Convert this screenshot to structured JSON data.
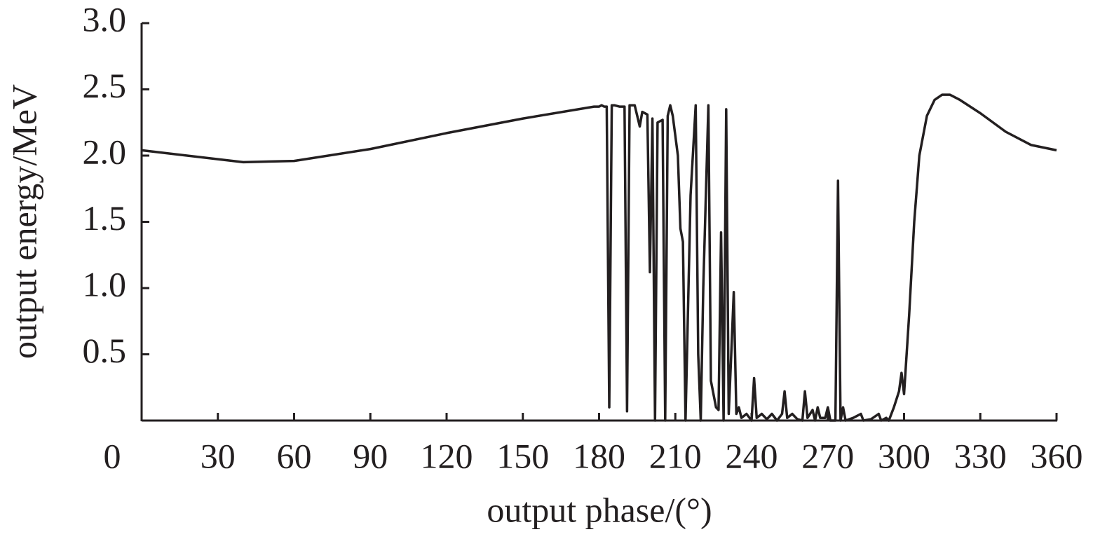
{
  "chart_data": {
    "type": "line",
    "xlabel": "output phase/(°)",
    "ylabel": "output energy/MeV",
    "xlim": [
      0,
      360
    ],
    "ylim": [
      0,
      3
    ],
    "xticks": [
      0,
      30,
      60,
      90,
      120,
      150,
      180,
      210,
      240,
      270,
      300,
      330,
      360
    ],
    "yticks": [
      0.5,
      {
        "value": 1,
        "label": "1.0"
      },
      1.5,
      {
        "value": 2,
        "label": "2.0"
      },
      2.5,
      {
        "value": 3,
        "label": "3.0"
      }
    ],
    "series": [
      {
        "color": "#231f20",
        "x": [
          0,
          40,
          60,
          90,
          120,
          150,
          178,
          180,
          181,
          182,
          183,
          184,
          185,
          186,
          188,
          190,
          191,
          192,
          194,
          196,
          197,
          199,
          200,
          201,
          202,
          203,
          205,
          206,
          207,
          208,
          209,
          211,
          212,
          213,
          214,
          216,
          218,
          219,
          220,
          221,
          223,
          224,
          226,
          227,
          228,
          229,
          230,
          231,
          232,
          233,
          234,
          235,
          236,
          238,
          240,
          241,
          242,
          244,
          246,
          248,
          250,
          252,
          253,
          254,
          256,
          258,
          260,
          261,
          262,
          264,
          265,
          266,
          267,
          269,
          270,
          271,
          273,
          274,
          275,
          276,
          277,
          280,
          283,
          284,
          287,
          290,
          291,
          293,
          294,
          296,
          298,
          299,
          300,
          302,
          304,
          306,
          309,
          312,
          315,
          318,
          322,
          330,
          340,
          350,
          360
        ],
        "values": [
          2.04,
          1.95,
          1.96,
          2.05,
          2.17,
          2.28,
          2.37,
          2.37,
          2.38,
          2.37,
          2.37,
          0.1,
          2.38,
          2.38,
          2.37,
          2.37,
          0.07,
          2.38,
          2.38,
          2.22,
          2.33,
          2.31,
          1.12,
          2.28,
          0.0,
          2.25,
          2.27,
          0.0,
          2.3,
          2.38,
          2.3,
          2.0,
          1.45,
          1.35,
          0.0,
          1.7,
          2.38,
          0.5,
          0.0,
          1.0,
          2.38,
          0.3,
          0.1,
          0.08,
          1.42,
          0.0,
          2.35,
          0.05,
          0.5,
          0.97,
          0.05,
          0.1,
          0.02,
          0.05,
          0.0,
          0.32,
          0.02,
          0.05,
          0.01,
          0.05,
          0.0,
          0.05,
          0.22,
          0.02,
          0.05,
          0.01,
          0.0,
          0.22,
          0.02,
          0.08,
          0.0,
          0.1,
          0.02,
          0.02,
          0.1,
          0.0,
          0.0,
          1.81,
          0.0,
          0.1,
          0.0,
          0.02,
          0.05,
          0.0,
          0.01,
          0.05,
          0.0,
          0.02,
          0.0,
          0.1,
          0.22,
          0.36,
          0.2,
          0.8,
          1.5,
          2.0,
          2.3,
          2.42,
          2.46,
          2.46,
          2.42,
          2.32,
          2.18,
          2.08,
          2.04
        ]
      }
    ]
  }
}
